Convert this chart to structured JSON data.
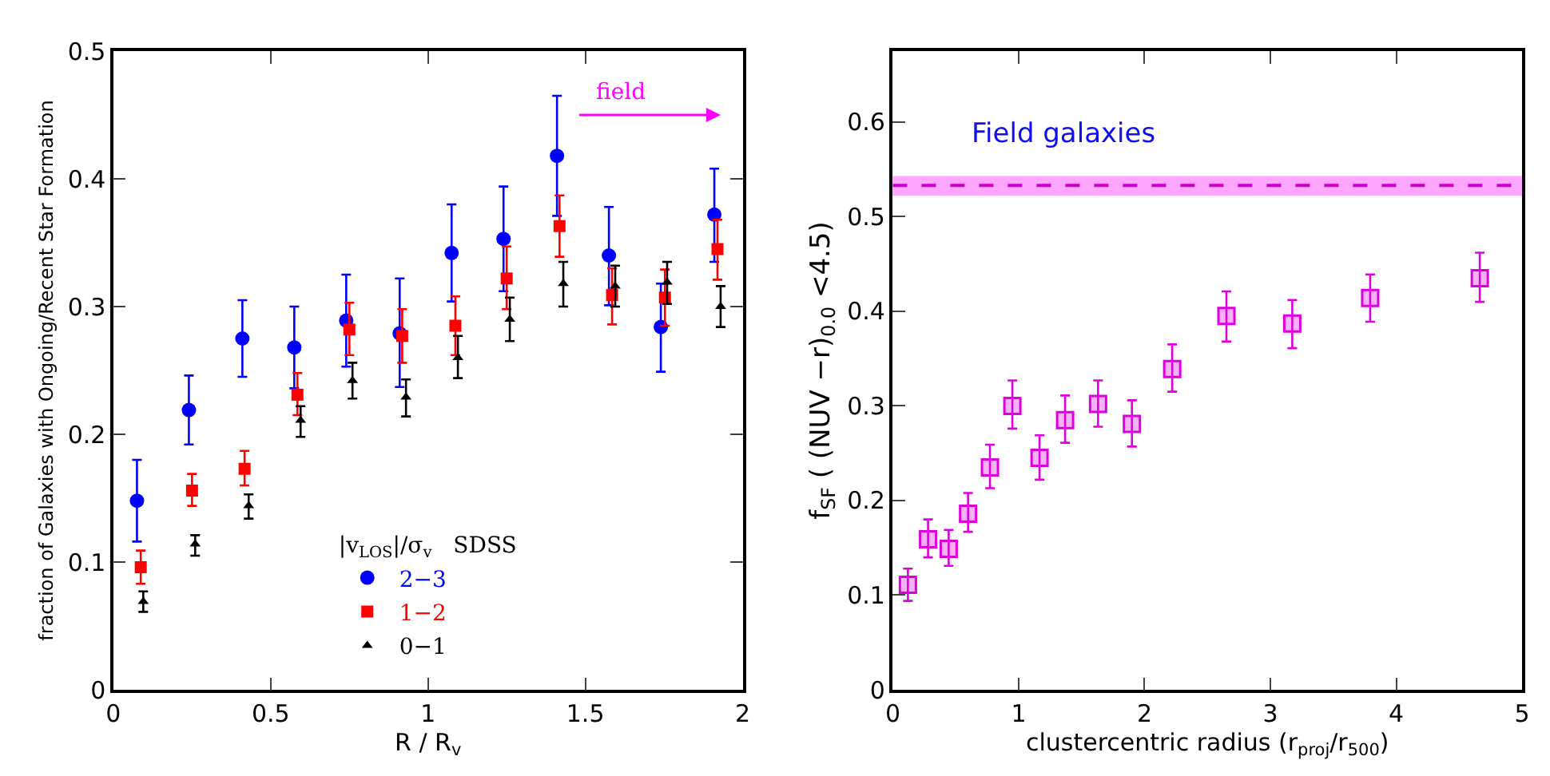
{
  "chart_data": [
    {
      "type": "scatter",
      "xlabel": "R / R$_{v}$",
      "ylabel": "fraction of Galaxies with Ongoing/Recent Star Formation",
      "legend_title": "|v$_{LOS}$|/σ$_{v}$   SDSS",
      "legend": "bottom",
      "xlim": [
        0,
        2
      ],
      "xticks": [
        0,
        0.5,
        1,
        1.5,
        2
      ],
      "ylim": [
        0,
        0.5
      ],
      "yticks": [
        0,
        0.1,
        0.2,
        0.3,
        0.4,
        0.5
      ],
      "annotations": [
        "field"
      ],
      "series": [
        {
          "name": "2−3",
          "color": "#0000ff",
          "marker": "circle",
          "x": [
            0.075,
            0.24,
            0.41,
            0.575,
            0.74,
            0.91,
            1.075,
            1.24,
            1.41,
            1.575,
            1.74,
            1.91
          ],
          "values": [
            0.148,
            0.219,
            0.275,
            0.268,
            0.289,
            0.279,
            0.342,
            0.353,
            0.418,
            0.34,
            0.284,
            0.372
          ],
          "errors": [
            [
              0.116,
              0.18
            ],
            [
              0.192,
              0.246
            ],
            [
              0.245,
              0.305
            ],
            [
              0.236,
              0.3
            ],
            [
              0.253,
              0.325
            ],
            [
              0.237,
              0.322
            ],
            [
              0.304,
              0.38
            ],
            [
              0.312,
              0.394
            ],
            [
              0.371,
              0.465
            ],
            [
              0.301,
              0.378
            ],
            [
              0.249,
              0.318
            ],
            [
              0.335,
              0.408
            ]
          ]
        },
        {
          "name": "1−2",
          "color": "#ff0000",
          "marker": "square",
          "x": [
            0.087,
            0.25,
            0.417,
            0.585,
            0.75,
            0.918,
            1.087,
            1.25,
            1.418,
            1.585,
            1.753,
            1.92
          ],
          "values": [
            0.096,
            0.156,
            0.173,
            0.231,
            0.282,
            0.277,
            0.285,
            0.322,
            0.363,
            0.309,
            0.307,
            0.345
          ],
          "errors": [
            [
              0.083,
              0.109
            ],
            [
              0.144,
              0.169
            ],
            [
              0.16,
              0.187
            ],
            [
              0.215,
              0.248
            ],
            [
              0.262,
              0.303
            ],
            [
              0.256,
              0.298
            ],
            [
              0.262,
              0.308
            ],
            [
              0.298,
              0.347
            ],
            [
              0.339,
              0.387
            ],
            [
              0.286,
              0.33
            ],
            [
              0.285,
              0.329
            ],
            [
              0.321,
              0.368
            ]
          ]
        },
        {
          "name": "0−1",
          "color": "#000000",
          "marker": "triangle",
          "x": [
            0.095,
            0.26,
            0.43,
            0.595,
            0.76,
            0.93,
            1.095,
            1.26,
            1.43,
            1.595,
            1.76,
            1.93
          ],
          "values": [
            0.069,
            0.114,
            0.144,
            0.211,
            0.242,
            0.229,
            0.26,
            0.29,
            0.318,
            0.316,
            0.319,
            0.3
          ],
          "errors": [
            [
              0.061,
              0.077
            ],
            [
              0.105,
              0.121
            ],
            [
              0.134,
              0.153
            ],
            [
              0.198,
              0.222
            ],
            [
              0.228,
              0.256
            ],
            [
              0.214,
              0.243
            ],
            [
              0.244,
              0.277
            ],
            [
              0.273,
              0.307
            ],
            [
              0.3,
              0.335
            ],
            [
              0.3,
              0.332
            ],
            [
              0.302,
              0.335
            ],
            [
              0.284,
              0.316
            ]
          ]
        }
      ]
    },
    {
      "type": "scatter",
      "xlabel": "clustercentric radius (r$_{proj}$/r$_{500}$)",
      "ylabel": "f$_{SF}$ ( (NUV −r)$_{0.0}$ <4.5)",
      "xlim": [
        0,
        5
      ],
      "xticks": [
        0,
        1,
        2,
        3,
        4,
        5
      ],
      "ylim": [
        0,
        0.675
      ],
      "yticks": [
        0,
        0.1,
        0.2,
        0.3,
        0.4,
        0.5,
        0.6
      ],
      "bands": [
        {
          "axis": "y",
          "from": 0.522,
          "to": 0.543,
          "label": "Field galaxies",
          "color": "#ff00ff"
        }
      ],
      "ref_lines": [
        {
          "axis": "y",
          "value": 0.533,
          "color": "#cc00cc",
          "line_style": "dashed"
        }
      ],
      "series": [
        {
          "color": "#dd00dd",
          "marker": "square",
          "x": [
            0.12,
            0.28,
            0.444,
            0.598,
            0.772,
            0.95,
            1.166,
            1.369,
            1.631,
            1.9,
            2.22,
            2.651,
            3.174,
            3.793,
            4.664
          ],
          "values": [
            0.111,
            0.159,
            0.149,
            0.186,
            0.235,
            0.3,
            0.245,
            0.285,
            0.302,
            0.281,
            0.339,
            0.395,
            0.387,
            0.414,
            0.435
          ],
          "errors": [
            [
              0.094,
              0.128
            ],
            [
              0.14,
              0.18
            ],
            [
              0.131,
              0.169
            ],
            [
              0.167,
              0.208
            ],
            [
              0.213,
              0.259
            ],
            [
              0.276,
              0.327
            ],
            [
              0.222,
              0.269
            ],
            [
              0.261,
              0.311
            ],
            [
              0.278,
              0.327
            ],
            [
              0.257,
              0.306
            ],
            [
              0.315,
              0.365
            ],
            [
              0.368,
              0.421
            ],
            [
              0.361,
              0.412
            ],
            [
              0.389,
              0.439
            ],
            [
              0.41,
              0.462
            ]
          ]
        }
      ]
    }
  ]
}
